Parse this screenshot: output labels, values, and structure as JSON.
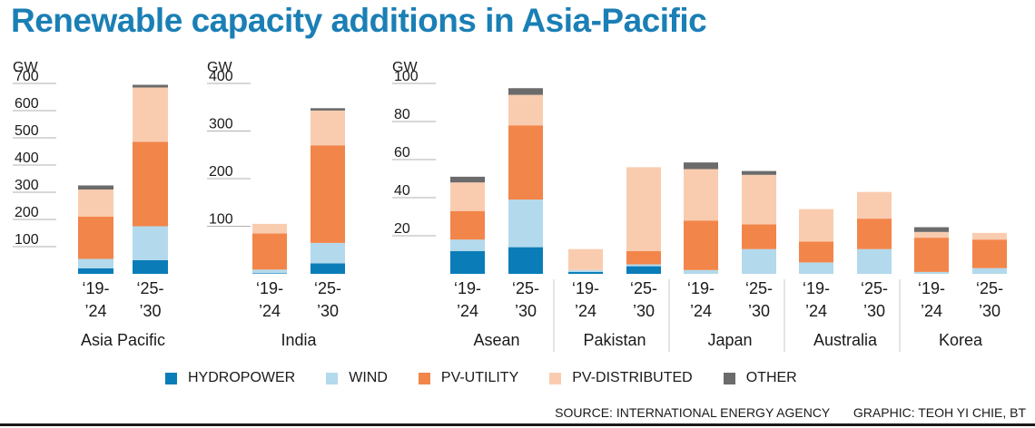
{
  "title": "Renewable capacity additions in Asia-Pacific",
  "colors": {
    "hydropower": "#0a7db8",
    "wind": "#b3d9ec",
    "pv_utility": "#f2854a",
    "pv_distributed": "#f9ccb0",
    "other": "#6b6b6b",
    "title": "#1a7fb5"
  },
  "legend": [
    {
      "key": "hydropower",
      "label": "HYDROPOWER",
      "color": "#0a7db8"
    },
    {
      "key": "wind",
      "label": "WIND",
      "color": "#b3d9ec"
    },
    {
      "key": "pv_utility",
      "label": "PV-UTILITY",
      "color": "#f2854a"
    },
    {
      "key": "pv_distributed",
      "label": "PV-DISTRIBUTED",
      "color": "#f9ccb0"
    },
    {
      "key": "other",
      "label": "OTHER",
      "color": "#6b6b6b"
    }
  ],
  "footer": {
    "source": "SOURCE: INTERNATIONAL ENERGY AGENCY",
    "graphic": "GRAPHIC: TEOH YI CHIE, BT"
  },
  "chart_data": [
    {
      "type": "bar",
      "stacked": true,
      "unit": "GW",
      "ylim": [
        0,
        700
      ],
      "yticks": [
        100,
        200,
        300,
        400,
        500,
        600,
        700
      ],
      "series_order": [
        "hydropower",
        "wind",
        "pv_utility",
        "pv_distributed",
        "other"
      ],
      "groups": [
        {
          "name": "Asia Pacific",
          "bars": [
            {
              "label": [
                "‘19-",
                "’24"
              ],
              "values": {
                "hydropower": 20,
                "wind": 35,
                "pv_utility": 155,
                "pv_distributed": 100,
                "other": 15
              }
            },
            {
              "label": [
                "‘25-",
                "’30"
              ],
              "values": {
                "hydropower": 50,
                "wind": 125,
                "pv_utility": 310,
                "pv_distributed": 200,
                "other": 10
              }
            }
          ]
        }
      ]
    },
    {
      "type": "bar",
      "stacked": true,
      "unit": "GW",
      "ylim": [
        0,
        400
      ],
      "yticks": [
        100,
        200,
        300,
        400
      ],
      "series_order": [
        "hydropower",
        "wind",
        "pv_utility",
        "pv_distributed",
        "other"
      ],
      "groups": [
        {
          "name": "India",
          "bars": [
            {
              "label": [
                "‘19-",
                "’24"
              ],
              "values": {
                "hydropower": 1,
                "wind": 8,
                "pv_utility": 76,
                "pv_distributed": 20,
                "other": 0
              }
            },
            {
              "label": [
                "‘25-",
                "’30"
              ],
              "values": {
                "hydropower": 22,
                "wind": 43,
                "pv_utility": 205,
                "pv_distributed": 73,
                "other": 5
              }
            }
          ]
        }
      ]
    },
    {
      "type": "bar",
      "stacked": true,
      "unit": "GW",
      "ylim": [
        0,
        100
      ],
      "yticks": [
        20,
        40,
        60,
        80,
        100
      ],
      "series_order": [
        "hydropower",
        "wind",
        "pv_utility",
        "pv_distributed",
        "other"
      ],
      "groups": [
        {
          "name": "Asean",
          "bars": [
            {
              "label": [
                "‘19-",
                "’24"
              ],
              "values": {
                "hydropower": 12,
                "wind": 6,
                "pv_utility": 15,
                "pv_distributed": 15,
                "other": 3
              }
            },
            {
              "label": [
                "‘25-",
                "’30"
              ],
              "values": {
                "hydropower": 14,
                "wind": 25,
                "pv_utility": 39,
                "pv_distributed": 16,
                "other": 3.5
              }
            }
          ]
        },
        {
          "name": "Pakistan",
          "bars": [
            {
              "label": [
                "‘19-",
                "’24"
              ],
              "values": {
                "hydropower": 1,
                "wind": 1,
                "pv_utility": 0,
                "pv_distributed": 11,
                "other": 0
              }
            },
            {
              "label": [
                "‘25-",
                "’30"
              ],
              "values": {
                "hydropower": 4,
                "wind": 1,
                "pv_utility": 7,
                "pv_distributed": 44,
                "other": 0
              }
            }
          ]
        },
        {
          "name": "Japan",
          "bars": [
            {
              "label": [
                "‘19-",
                "’24"
              ],
              "values": {
                "hydropower": 0,
                "wind": 2,
                "pv_utility": 26,
                "pv_distributed": 27,
                "other": 3.5
              }
            },
            {
              "label": [
                "‘25-",
                "’30"
              ],
              "values": {
                "hydropower": 0,
                "wind": 13,
                "pv_utility": 13,
                "pv_distributed": 26,
                "other": 2
              }
            }
          ]
        },
        {
          "name": "Australia",
          "bars": [
            {
              "label": [
                "‘19-",
                "’24"
              ],
              "values": {
                "hydropower": 0,
                "wind": 6,
                "pv_utility": 11,
                "pv_distributed": 17,
                "other": 0
              }
            },
            {
              "label": [
                "‘25-",
                "’30"
              ],
              "values": {
                "hydropower": 0,
                "wind": 13,
                "pv_utility": 16,
                "pv_distributed": 14,
                "other": 0
              }
            }
          ]
        },
        {
          "name": "Korea",
          "bars": [
            {
              "label": [
                "‘19-",
                "’24"
              ],
              "values": {
                "hydropower": 0,
                "wind": 1,
                "pv_utility": 18,
                "pv_distributed": 3,
                "other": 2.5
              }
            },
            {
              "label": [
                "‘25-",
                "’30"
              ],
              "values": {
                "hydropower": 0,
                "wind": 3,
                "pv_utility": 15,
                "pv_distributed": 3.5,
                "other": 0
              }
            }
          ]
        }
      ]
    }
  ]
}
